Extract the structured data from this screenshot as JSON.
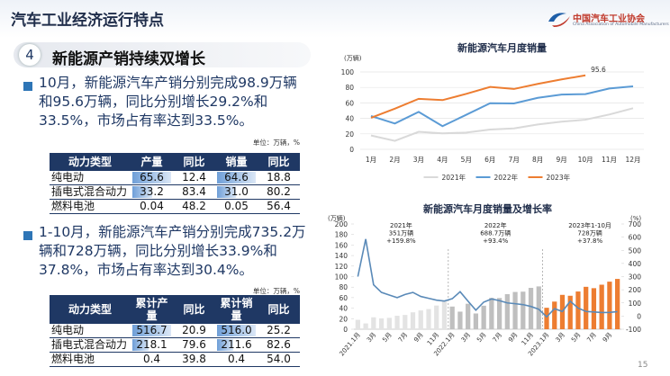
{
  "header": {
    "title": "汽车工业经济运行特点",
    "logo": "中国汽车工业协会",
    "logo_en": "China Association of Automobile Manufacturers"
  },
  "section": {
    "number": "4",
    "title": "新能源产销持续双增长"
  },
  "paragraphs": [
    "10月，新能源汽车产销分别完成98.9万辆和95.6万辆，同比分别增长29.2%和33.5%，市场占有率达到33.5%。",
    "1-10月，新能源汽车产销分别完成735.2万辆和728万辆，同比分别增长33.9%和37.8%，市场占有率达到30.4%。"
  ],
  "tables": [
    {
      "unit": "单位：万辆，%",
      "header": [
        "动力类型",
        "产量",
        "同比",
        "销量",
        "同比"
      ],
      "bar_columns": [
        1,
        3
      ],
      "rows": [
        [
          "纯电动",
          "65.6",
          "12.4",
          "64.6",
          "18.8"
        ],
        [
          "插电式混合动力",
          "33.2",
          "83.4",
          "31.0",
          "80.2"
        ],
        [
          "燃料电池",
          "0.04",
          "48.2",
          "0.05",
          "56.4"
        ]
      ]
    },
    {
      "unit": "单位：万辆，%",
      "header": [
        "动力类型",
        "累计产量",
        "同比",
        "累计销量",
        "同比"
      ],
      "bar_columns": [
        1,
        3
      ],
      "rows": [
        [
          "纯电动",
          "516.7",
          "20.9",
          "516.0",
          "25.2"
        ],
        [
          "插电式混合动力",
          "218.1",
          "79.6",
          "211.6",
          "82.6"
        ],
        [
          "燃料电池",
          "0.4",
          "39.8",
          "0.4",
          "54.0"
        ]
      ]
    }
  ],
  "chart_data": [
    {
      "type": "line",
      "title": "新能源汽车月度销量",
      "y_label": "(万辆)",
      "categories": [
        "1月",
        "2月",
        "3月",
        "4月",
        "5月",
        "6月",
        "7月",
        "8月",
        "9月",
        "10月",
        "11月",
        "12月"
      ],
      "ylim": [
        0,
        100
      ],
      "yticks": [
        0,
        20,
        40,
        60,
        80,
        100
      ],
      "grid": true,
      "legend": "bottom",
      "series": [
        {
          "name": "2021年",
          "color": "#d9d9d9",
          "values": [
            17.9,
            11.0,
            22.6,
            20.6,
            21.7,
            25.6,
            27.1,
            32.1,
            35.7,
            38.3,
            45.0,
            53.1
          ]
        },
        {
          "name": "2022年",
          "color": "#5b9bd5",
          "values": [
            43.1,
            33.4,
            48.4,
            29.9,
            44.7,
            59.6,
            59.3,
            66.6,
            70.8,
            71.4,
            78.6,
            81.4
          ]
        },
        {
          "name": "2023年",
          "color": "#ed7d31",
          "values": [
            40.8,
            52.5,
            65.3,
            63.6,
            71.7,
            80.6,
            78.0,
            84.6,
            90.4,
            95.6,
            null,
            null
          ],
          "value_labels": [
            null,
            null,
            null,
            null,
            null,
            null,
            null,
            null,
            null,
            "95.6",
            null,
            null
          ]
        }
      ]
    },
    {
      "type": "bar",
      "title": "新能源汽车月度销量及增长率",
      "y_label": "(万辆)",
      "y2_label": "(%)",
      "categories": [
        "2021.1月",
        null,
        "3月",
        null,
        "5月",
        null,
        "7月",
        null,
        "9月",
        null,
        "11月",
        null,
        "2022.1月",
        null,
        "3月",
        null,
        "5月",
        null,
        "7月",
        null,
        "9月",
        null,
        "11月",
        null,
        "2023.1月",
        null,
        "3月",
        null,
        "5月",
        null,
        "7月",
        null,
        "9月",
        null
      ],
      "ylim": [
        0,
        200
      ],
      "yticks": [
        0,
        20,
        40,
        60,
        80,
        100,
        120,
        140,
        160,
        180,
        200
      ],
      "y2lim": [
        -100,
        700
      ],
      "y2ticks": [
        -100,
        0,
        100,
        200,
        300,
        400,
        500,
        600,
        700
      ],
      "grid": false,
      "annotations": [
        [
          "2021年",
          "351万辆",
          "+159.8%"
        ],
        [
          "2022年",
          "688.7万辆",
          "+93.4%"
        ],
        [
          "2023年1-10月",
          "728万辆",
          "+37.8%"
        ]
      ],
      "series": [
        {
          "type": "bar",
          "color": "#e3e3e3",
          "values": [
            17.9,
            11.0,
            22.6,
            20.6,
            21.7,
            25.6,
            27.1,
            32.1,
            35.7,
            38.3,
            45.0,
            53.1,
            null,
            null,
            null,
            null,
            null,
            null,
            null,
            null,
            null,
            null,
            null,
            null,
            null,
            null,
            null,
            null,
            null,
            null,
            null,
            null,
            null,
            null
          ]
        },
        {
          "type": "bar",
          "color": "#bfbfbf",
          "values": [
            null,
            null,
            null,
            null,
            null,
            null,
            null,
            null,
            null,
            null,
            null,
            null,
            43.1,
            33.4,
            48.4,
            29.9,
            44.7,
            59.6,
            59.3,
            66.6,
            70.8,
            71.4,
            78.6,
            81.4,
            null,
            null,
            null,
            null,
            null,
            null,
            null,
            null,
            null,
            null
          ]
        },
        {
          "type": "bar",
          "color": "#ed7d31",
          "values": [
            null,
            null,
            null,
            null,
            null,
            null,
            null,
            null,
            null,
            null,
            null,
            null,
            null,
            null,
            null,
            null,
            null,
            null,
            null,
            null,
            null,
            null,
            null,
            null,
            40.8,
            52.5,
            65.3,
            63.6,
            71.7,
            80.6,
            78.0,
            84.6,
            90.4,
            95.6
          ]
        },
        {
          "type": "line",
          "axis": "y2",
          "color": "#5a8ab8",
          "values": [
            300,
            585,
            238,
            180,
            160,
            140,
            164,
            180,
            149,
            135,
            121,
            114,
            132,
            185,
            114,
            45,
            106,
            130,
            117,
            100,
            94,
            87,
            73,
            52,
            -6,
            56,
            35,
            113,
            61,
            35,
            31,
            27,
            28,
            34
          ]
        }
      ]
    }
  ],
  "footer": {
    "page": "15"
  }
}
